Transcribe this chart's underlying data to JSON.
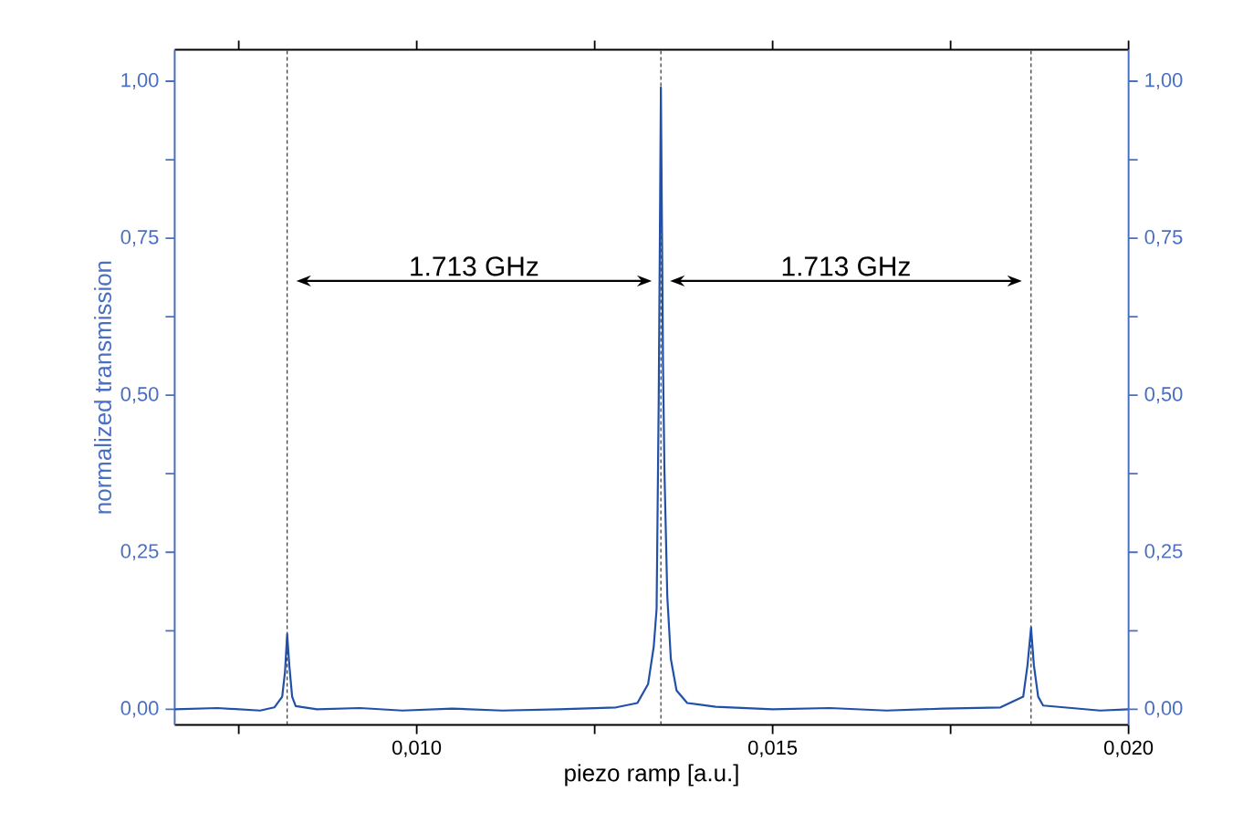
{
  "chart_data": {
    "type": "line",
    "xlabel": "piezo ramp [a.u.]",
    "ylabel": "normalized transmission",
    "xlim": [
      0.0066,
      0.02
    ],
    "ylim": [
      -0.025,
      1.05
    ],
    "y2lim": [
      -0.025,
      1.05
    ],
    "xticks": [
      {
        "value": 0.0075,
        "label": null
      },
      {
        "value": 0.01,
        "label": "0,010"
      },
      {
        "value": 0.0125,
        "label": null
      },
      {
        "value": 0.015,
        "label": "0,015"
      },
      {
        "value": 0.0175,
        "label": null
      },
      {
        "value": 0.02,
        "label": "0,020"
      }
    ],
    "yticks": [
      {
        "value": 0,
        "label": "0,00"
      },
      {
        "value": 0.125,
        "label": null
      },
      {
        "value": 0.25,
        "label": "0,25"
      },
      {
        "value": 0.375,
        "label": null
      },
      {
        "value": 0.5,
        "label": "0,50"
      },
      {
        "value": 0.625,
        "label": null
      },
      {
        "value": 0.75,
        "label": "0,75"
      },
      {
        "value": 0.875,
        "label": null
      },
      {
        "value": 1,
        "label": "1,00"
      }
    ],
    "y2ticks": [
      {
        "value": 0,
        "label": "0,00"
      },
      {
        "value": 0.125,
        "label": null
      },
      {
        "value": 0.25,
        "label": "0,25"
      },
      {
        "value": 0.375,
        "label": null
      },
      {
        "value": 0.5,
        "label": "0,50"
      },
      {
        "value": 0.625,
        "label": null
      },
      {
        "value": 0.75,
        "label": "0,75"
      },
      {
        "value": 0.875,
        "label": null
      },
      {
        "value": 1,
        "label": "1,00"
      }
    ],
    "grid": false,
    "marker": "none",
    "line_style": "solid",
    "series": [
      {
        "color": "#2150a8",
        "x": [
          0.0066,
          0.0072,
          0.0078,
          0.008,
          0.00811,
          0.00815,
          0.00818,
          0.00821,
          0.00825,
          0.0083,
          0.0086,
          0.0092,
          0.0098,
          0.0105,
          0.0112,
          0.012,
          0.0128,
          0.0131,
          0.01325,
          0.01333,
          0.01337,
          0.0134,
          0.01343,
          0.01346,
          0.01348,
          0.01352,
          0.01357,
          0.01365,
          0.0138,
          0.0142,
          0.015,
          0.0158,
          0.0166,
          0.0174,
          0.0182,
          0.01852,
          0.01858,
          0.01863,
          0.01867,
          0.01873,
          0.0188,
          0.0192,
          0.0196,
          0.02
        ],
        "values": [
          0.0,
          0.002,
          -0.002,
          0.003,
          0.02,
          0.06,
          0.12,
          0.07,
          0.02,
          0.005,
          0.0,
          0.002,
          -0.002,
          0.001,
          -0.002,
          0.0,
          0.003,
          0.01,
          0.04,
          0.1,
          0.16,
          0.5,
          0.99,
          0.55,
          0.38,
          0.18,
          0.08,
          0.03,
          0.01,
          0.004,
          0.0,
          0.002,
          -0.002,
          0.001,
          0.003,
          0.02,
          0.07,
          0.13,
          0.07,
          0.02,
          0.006,
          0.002,
          -0.002,
          0.0
        ]
      }
    ],
    "ref_lines": [
      {
        "axis": "x",
        "value": 0.00818,
        "color": "#333333",
        "line_style": "dashed"
      },
      {
        "axis": "x",
        "value": 0.01343,
        "color": "#333333",
        "line_style": "dashed"
      },
      {
        "axis": "x",
        "value": 0.01863,
        "color": "#333333",
        "line_style": "dashed"
      }
    ],
    "annotations": [
      "1.713 GHz",
      "1.713 GHz"
    ]
  }
}
